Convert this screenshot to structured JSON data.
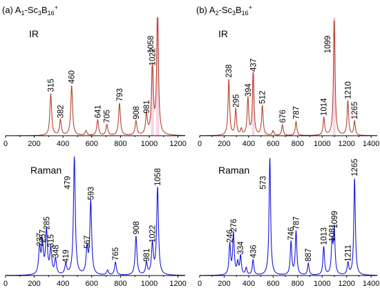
{
  "colors": {
    "ir": "#b5422c",
    "ir_band": "#f9d5e6",
    "raman": "#1515dd"
  },
  "chart_data": [
    {
      "id": "a-ir",
      "type": "line",
      "title_prefix": "(a) A",
      "title_sub1": "1",
      "title_mid": "-Sc",
      "title_sub2": "3",
      "title_mid2": "B",
      "title_sub3": "16",
      "title_sup": "+",
      "spectrum_label": "IR",
      "series_color": "ir",
      "xlim": [
        0,
        1250
      ],
      "ticks": [
        0,
        200,
        400,
        600,
        800,
        1000,
        1200
      ],
      "tick_labels": [
        "0",
        "200",
        "400",
        "600",
        "800",
        "1000",
        "1200"
      ],
      "peaks": [
        {
          "x": 315,
          "y": 0.35,
          "label": "315"
        },
        {
          "x": 382,
          "y": 0.13,
          "label": "382"
        },
        {
          "x": 460,
          "y": 0.42,
          "label": "460"
        },
        {
          "x": 560,
          "y": 0.04,
          "label": ""
        },
        {
          "x": 641,
          "y": 0.13,
          "label": "641"
        },
        {
          "x": 705,
          "y": 0.09,
          "label": "705"
        },
        {
          "x": 793,
          "y": 0.27,
          "label": "793"
        },
        {
          "x": 908,
          "y": 0.12,
          "label": "908"
        },
        {
          "x": 981,
          "y": 0.17,
          "label": "981"
        },
        {
          "x": 1022,
          "y": 0.57,
          "label": "1022"
        },
        {
          "x": 1058,
          "y": 0.98,
          "label": "1058"
        }
      ]
    },
    {
      "id": "b-ir",
      "type": "line",
      "title_prefix": "(b) A",
      "title_sub1": "2",
      "title_mid": "-Sc",
      "title_sub2": "3",
      "title_mid2": "B",
      "title_sub3": "16",
      "title_sup": "+",
      "spectrum_label": "IR",
      "series_color": "ir",
      "xlim": [
        0,
        1450
      ],
      "ticks": [
        0,
        200,
        400,
        600,
        800,
        1000,
        1200,
        1400
      ],
      "tick_labels": [
        "0",
        "200",
        "400",
        "600",
        "800",
        "1000",
        "1200",
        "1400"
      ],
      "peaks": [
        {
          "x": 238,
          "y": 0.47,
          "label": "238"
        },
        {
          "x": 295,
          "y": 0.22,
          "label": "295"
        },
        {
          "x": 340,
          "y": 0.05,
          "label": ""
        },
        {
          "x": 394,
          "y": 0.31,
          "label": "394"
        },
        {
          "x": 437,
          "y": 0.52,
          "label": "437"
        },
        {
          "x": 512,
          "y": 0.25,
          "label": "512"
        },
        {
          "x": 600,
          "y": 0.04,
          "label": ""
        },
        {
          "x": 676,
          "y": 0.09,
          "label": "676"
        },
        {
          "x": 787,
          "y": 0.12,
          "label": "787"
        },
        {
          "x": 1014,
          "y": 0.15,
          "label": "1014"
        },
        {
          "x": 1099,
          "y": 0.98,
          "label": "1099"
        },
        {
          "x": 1210,
          "y": 0.29,
          "label": "1210"
        },
        {
          "x": 1265,
          "y": 0.12,
          "label": "1265"
        }
      ]
    },
    {
      "id": "a-raman",
      "type": "line",
      "spectrum_label": "Raman",
      "series_color": "raman",
      "xlim": [
        0,
        1250
      ],
      "ticks": [
        0,
        200,
        400,
        600,
        800,
        1000,
        1200
      ],
      "tick_labels": [
        "0",
        "200",
        "400",
        "600",
        "800",
        "1000",
        "1200"
      ],
      "peaks": [
        {
          "x": 237,
          "y": 0.23,
          "label": "237"
        },
        {
          "x": 257,
          "y": 0.26,
          "label": "257"
        },
        {
          "x": 285,
          "y": 0.37,
          "label": "285"
        },
        {
          "x": 315,
          "y": 0.22,
          "label": "315"
        },
        {
          "x": 348,
          "y": 0.13,
          "label": "348"
        },
        {
          "x": 419,
          "y": 0.09,
          "label": "419"
        },
        {
          "x": 479,
          "y": 1.0,
          "label": "479"
        },
        {
          "x": 567,
          "y": 0.21,
          "label": "567"
        },
        {
          "x": 593,
          "y": 0.62,
          "label": "593"
        },
        {
          "x": 710,
          "y": 0.04,
          "label": ""
        },
        {
          "x": 765,
          "y": 0.11,
          "label": "765"
        },
        {
          "x": 908,
          "y": 0.33,
          "label": "908"
        },
        {
          "x": 981,
          "y": 0.1,
          "label": "981"
        },
        {
          "x": 1022,
          "y": 0.26,
          "label": "1022"
        },
        {
          "x": 1058,
          "y": 0.74,
          "label": "1058"
        }
      ]
    },
    {
      "id": "b-raman",
      "type": "line",
      "spectrum_label": "Raman",
      "series_color": "raman",
      "xlim": [
        0,
        1450
      ],
      "ticks": [
        0,
        200,
        400,
        600,
        800,
        1000,
        1200,
        1400
      ],
      "tick_labels": [
        "0",
        "200",
        "400",
        "600",
        "800",
        "1000",
        "1200",
        "1400"
      ],
      "peaks": [
        {
          "x": 246,
          "y": 0.26,
          "label": "246"
        },
        {
          "x": 276,
          "y": 0.35,
          "label": "276"
        },
        {
          "x": 310,
          "y": 0.1,
          "label": ""
        },
        {
          "x": 334,
          "y": 0.16,
          "label": "334"
        },
        {
          "x": 380,
          "y": 0.06,
          "label": ""
        },
        {
          "x": 436,
          "y": 0.13,
          "label": "436"
        },
        {
          "x": 573,
          "y": 1.0,
          "label": "573"
        },
        {
          "x": 746,
          "y": 0.28,
          "label": "746"
        },
        {
          "x": 787,
          "y": 0.37,
          "label": "787"
        },
        {
          "x": 887,
          "y": 0.1,
          "label": "887"
        },
        {
          "x": 1013,
          "y": 0.24,
          "label": "1013"
        },
        {
          "x": 1081,
          "y": 0.27,
          "label": "1081"
        },
        {
          "x": 1099,
          "y": 0.38,
          "label": "1099"
        },
        {
          "x": 1211,
          "y": 0.1,
          "label": "1211"
        },
        {
          "x": 1265,
          "y": 0.82,
          "label": "1265"
        }
      ]
    }
  ]
}
